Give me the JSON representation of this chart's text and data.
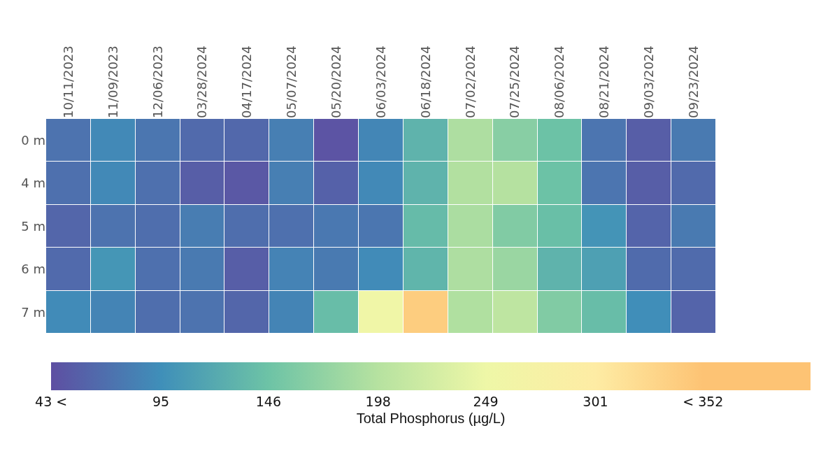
{
  "chart_data": {
    "type": "heatmap",
    "clabel": "Total Phosphorus (µg/L)",
    "categories": [
      "10/11/2023",
      "11/09/2023",
      "12/06/2023",
      "03/28/2024",
      "04/17/2024",
      "05/07/2024",
      "05/20/2024",
      "06/03/2024",
      "06/18/2024",
      "07/02/2024",
      "07/25/2024",
      "08/06/2024",
      "08/21/2024",
      "09/03/2024",
      "09/23/2024"
    ],
    "y_categories": [
      "0 m",
      "4 m",
      "5 m",
      "6 m",
      "7 m"
    ],
    "cells": [
      [
        72,
        90,
        75,
        65,
        63,
        82,
        47,
        88,
        130,
        192,
        165,
        145,
        74,
        55,
        78
      ],
      [
        70,
        90,
        70,
        55,
        50,
        82,
        58,
        90,
        130,
        195,
        197,
        145,
        74,
        55,
        65
      ],
      [
        62,
        72,
        68,
        80,
        68,
        70,
        76,
        75,
        138,
        190,
        160,
        142,
        100,
        60,
        78
      ],
      [
        65,
        102,
        70,
        78,
        55,
        85,
        78,
        92,
        132,
        192,
        178,
        130,
        112,
        66,
        66
      ],
      [
        92,
        86,
        68,
        72,
        62,
        86,
        140,
        255,
        340,
        194,
        205,
        160,
        140,
        94,
        60
      ]
    ],
    "clim": [
      43,
      403
    ],
    "cticks": [
      {
        "value": 43,
        "label": "43 <"
      },
      95,
      146,
      198,
      249,
      301,
      {
        "value": 352,
        "label": "< 352"
      }
    ]
  }
}
